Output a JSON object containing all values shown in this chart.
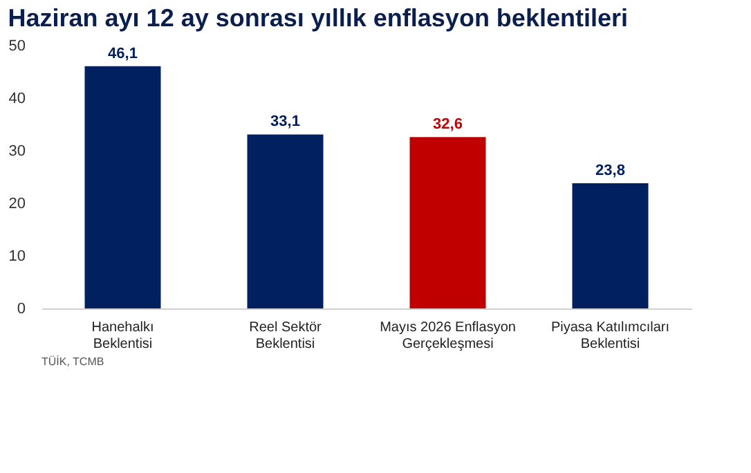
{
  "chart_data": {
    "type": "bar",
    "title": "Haziran ayı 12 ay sonrası yıllık enflasyon beklentileri",
    "categories": [
      "Hanehalkı\nBeklentisi",
      "Reel Sektör\nBeklentisi",
      "Mayıs 2026 Enflasyon\nGerçekleşmesi",
      "Piyasa Katılımcıları\nBeklentisi"
    ],
    "values": [
      46.1,
      33.1,
      32.6,
      23.8
    ],
    "colors": [
      "#002060",
      "#002060",
      "#c00000",
      "#002060"
    ],
    "value_labels": [
      "46,1",
      "33,1",
      "32,6",
      "23,8"
    ],
    "ylim": [
      0,
      50
    ],
    "yticks": [
      0,
      10,
      20,
      30,
      40,
      50
    ],
    "grid": false,
    "annotations": [
      "TÜİK, TCMB"
    ]
  }
}
